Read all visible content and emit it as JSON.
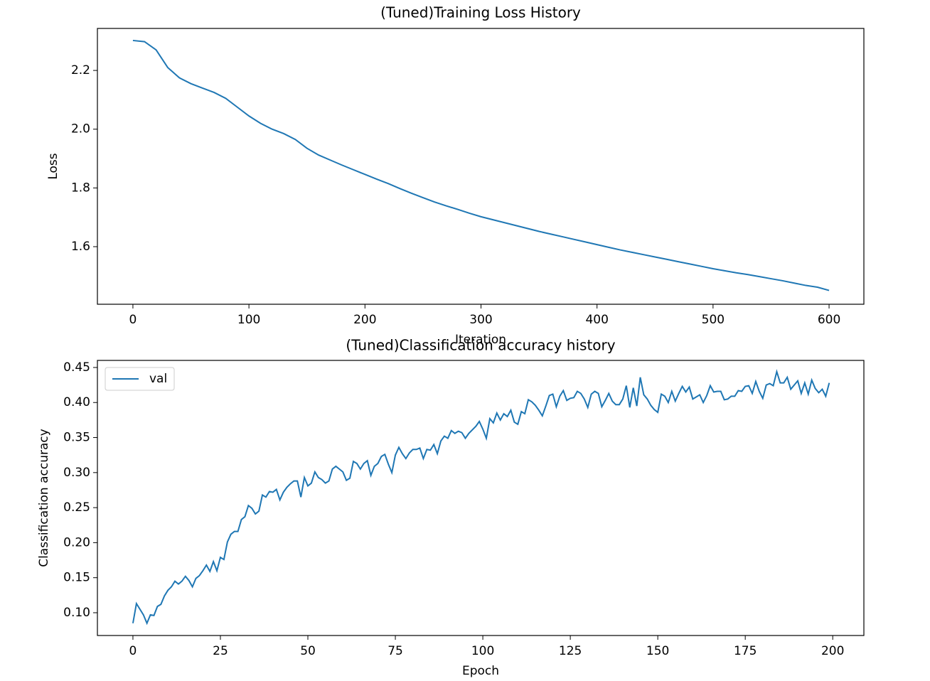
{
  "chart_data": [
    {
      "type": "line",
      "title": "(Tuned)Training Loss History",
      "x_label": "Iteration",
      "y_label": "Loss",
      "color": "#1f77b4",
      "x": [
        0,
        10,
        20,
        30,
        40,
        50,
        60,
        70,
        80,
        90,
        100,
        110,
        120,
        130,
        140,
        150,
        160,
        170,
        180,
        190,
        200,
        210,
        220,
        230,
        240,
        250,
        260,
        270,
        280,
        290,
        300,
        310,
        320,
        330,
        340,
        350,
        360,
        370,
        380,
        390,
        400,
        410,
        420,
        430,
        440,
        450,
        460,
        470,
        480,
        490,
        500,
        510,
        520,
        530,
        540,
        550,
        560,
        570,
        580,
        590,
        600
      ],
      "values": [
        2.302,
        2.298,
        2.27,
        2.21,
        2.175,
        2.155,
        2.14,
        2.125,
        2.105,
        2.075,
        2.045,
        2.02,
        2.0,
        1.985,
        1.965,
        1.935,
        1.912,
        1.895,
        1.878,
        1.862,
        1.846,
        1.83,
        1.815,
        1.798,
        1.782,
        1.767,
        1.752,
        1.739,
        1.727,
        1.714,
        1.702,
        1.692,
        1.682,
        1.672,
        1.662,
        1.652,
        1.643,
        1.634,
        1.625,
        1.616,
        1.607,
        1.598,
        1.589,
        1.581,
        1.573,
        1.565,
        1.557,
        1.549,
        1.541,
        1.533,
        1.525,
        1.518,
        1.511,
        1.505,
        1.498,
        1.491,
        1.484,
        1.476,
        1.468,
        1.462,
        1.451
      ],
      "xlim": [
        -30.6,
        630
      ],
      "ylim": [
        1.404,
        2.343
      ],
      "xticks": [
        0,
        100,
        200,
        300,
        400,
        500,
        600
      ],
      "yticks": [
        1.6,
        1.8,
        {
          "value": 2,
          "label": "2.0"
        },
        2.2
      ]
    },
    {
      "type": "line",
      "title": "(Tuned)Classification accuracy history",
      "x_label": "Epoch",
      "y_label": "Classification accuracy",
      "legend": "upper left",
      "x": [
        0,
        1,
        2,
        3,
        4,
        5,
        6,
        7,
        8,
        9,
        10,
        11,
        12,
        13,
        14,
        15,
        16,
        17,
        18,
        19,
        20,
        21,
        22,
        23,
        24,
        25,
        26,
        27,
        28,
        29,
        30,
        31,
        32,
        33,
        34,
        35,
        36,
        37,
        38,
        39,
        40,
        41,
        42,
        43,
        44,
        45,
        46,
        47,
        48,
        49,
        50,
        51,
        52,
        53,
        54,
        55,
        56,
        57,
        58,
        59,
        60,
        61,
        62,
        63,
        64,
        65,
        66,
        67,
        68,
        69,
        70,
        71,
        72,
        73,
        74,
        75,
        76,
        77,
        78,
        79,
        80,
        81,
        82,
        83,
        84,
        85,
        86,
        87,
        88,
        89,
        90,
        91,
        92,
        93,
        94,
        95,
        96,
        97,
        98,
        99,
        100,
        101,
        102,
        103,
        104,
        105,
        106,
        107,
        108,
        109,
        110,
        111,
        112,
        113,
        114,
        115,
        116,
        117,
        118,
        119,
        120,
        121,
        122,
        123,
        124,
        125,
        126,
        127,
        128,
        129,
        130,
        131,
        132,
        133,
        134,
        135,
        136,
        137,
        138,
        139,
        140,
        141,
        142,
        143,
        144,
        145,
        146,
        147,
        148,
        149,
        150,
        151,
        152,
        153,
        154,
        155,
        156,
        157,
        158,
        159,
        160,
        161,
        162,
        163,
        164,
        165,
        166,
        167,
        168,
        169,
        170,
        171,
        172,
        173,
        174,
        175,
        176,
        177,
        178,
        179,
        180,
        181,
        182,
        183,
        184,
        185,
        186,
        187,
        188,
        189,
        190,
        191,
        192,
        193,
        194,
        195,
        196,
        197,
        198,
        199
      ],
      "series": [
        {
          "name": "val",
          "color": "#1f77b4",
          "values": [
            0.085,
            0.113,
            0.105,
            0.097,
            0.085,
            0.097,
            0.096,
            0.109,
            0.112,
            0.124,
            0.132,
            0.137,
            0.145,
            0.141,
            0.145,
            0.152,
            0.146,
            0.137,
            0.149,
            0.153,
            0.16,
            0.168,
            0.159,
            0.173,
            0.16,
            0.179,
            0.176,
            0.201,
            0.212,
            0.216,
            0.216,
            0.233,
            0.237,
            0.253,
            0.249,
            0.241,
            0.245,
            0.268,
            0.265,
            0.273,
            0.272,
            0.276,
            0.261,
            0.272,
            0.279,
            0.284,
            0.288,
            0.288,
            0.265,
            0.293,
            0.281,
            0.285,
            0.301,
            0.293,
            0.29,
            0.285,
            0.288,
            0.305,
            0.309,
            0.305,
            0.301,
            0.289,
            0.292,
            0.316,
            0.313,
            0.305,
            0.313,
            0.317,
            0.296,
            0.309,
            0.313,
            0.323,
            0.326,
            0.312,
            0.3,
            0.325,
            0.336,
            0.327,
            0.32,
            0.328,
            0.333,
            0.333,
            0.335,
            0.32,
            0.333,
            0.332,
            0.34,
            0.327,
            0.345,
            0.352,
            0.349,
            0.36,
            0.356,
            0.359,
            0.357,
            0.349,
            0.356,
            0.361,
            0.366,
            0.373,
            0.362,
            0.349,
            0.377,
            0.371,
            0.385,
            0.375,
            0.384,
            0.38,
            0.389,
            0.372,
            0.369,
            0.387,
            0.384,
            0.404,
            0.401,
            0.396,
            0.389,
            0.381,
            0.395,
            0.41,
            0.412,
            0.394,
            0.409,
            0.417,
            0.403,
            0.406,
            0.407,
            0.416,
            0.413,
            0.405,
            0.393,
            0.412,
            0.416,
            0.413,
            0.394,
            0.403,
            0.413,
            0.402,
            0.397,
            0.397,
            0.405,
            0.424,
            0.393,
            0.421,
            0.395,
            0.436,
            0.411,
            0.405,
            0.396,
            0.39,
            0.386,
            0.412,
            0.409,
            0.4,
            0.416,
            0.402,
            0.413,
            0.423,
            0.415,
            0.422,
            0.405,
            0.408,
            0.411,
            0.4,
            0.41,
            0.424,
            0.415,
            0.416,
            0.416,
            0.404,
            0.405,
            0.409,
            0.409,
            0.417,
            0.416,
            0.423,
            0.424,
            0.413,
            0.43,
            0.416,
            0.406,
            0.425,
            0.427,
            0.424,
            0.444,
            0.428,
            0.428,
            0.436,
            0.419,
            0.425,
            0.431,
            0.413,
            0.428,
            0.412,
            0.432,
            0.42,
            0.414,
            0.419,
            0.409,
            0.428
          ]
        }
      ],
      "xlim": [
        -10.15,
        208.9
      ],
      "ylim": [
        0.0675,
        0.4601
      ],
      "xticks": [
        0,
        25,
        50,
        75,
        100,
        125,
        150,
        175,
        200
      ],
      "yticks": [
        {
          "value": 0.1,
          "label": "0.10"
        },
        0.15,
        {
          "value": 0.2,
          "label": "0.20"
        },
        0.25,
        {
          "value": 0.3,
          "label": "0.30"
        },
        0.35,
        {
          "value": 0.4,
          "label": "0.40"
        },
        0.45
      ]
    }
  ]
}
